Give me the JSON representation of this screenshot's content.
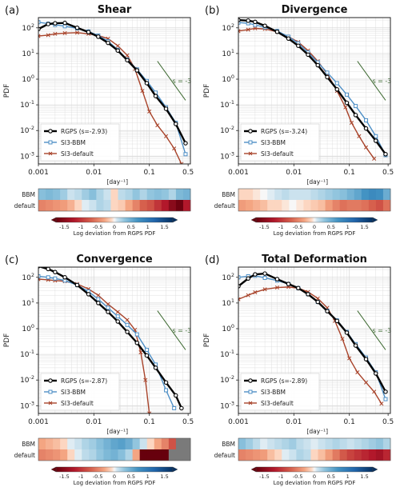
{
  "colors": {
    "rgps": "#000000",
    "bbm": "#4e8fc6",
    "default": "#a8432a",
    "slope_line": "#3e6a32",
    "missing": "#7a7a7a",
    "grid": "#d9d9d9"
  },
  "shared": {
    "ylabel": "PDF",
    "xlabel": "[day⁻¹]",
    "xticks": [
      {
        "value": 0.001,
        "label": "0.001"
      },
      {
        "value": 0.01,
        "label": "0.01"
      },
      {
        "value": 0.1,
        "label": "0.1"
      },
      {
        "value": 0.5,
        "label": "0.5"
      }
    ],
    "yticks": [
      {
        "exp": 2,
        "label": "10",
        "sup": "2"
      },
      {
        "exp": 1,
        "label": "10",
        "sup": "1"
      },
      {
        "exp": 0,
        "label": "10",
        "sup": "0"
      },
      {
        "exp": -1,
        "label": "10",
        "sup": "-1"
      },
      {
        "exp": -2,
        "label": "10",
        "sup": "-2"
      },
      {
        "exp": -3,
        "label": "10",
        "sup": "-3"
      }
    ],
    "slope_label": "s = -3",
    "heat_rows": [
      "BBM",
      "default"
    ],
    "colorbar_label": "Log deviation from RGPS PDF",
    "colorbar_ticks": [
      "-1.5",
      "-1",
      "-0.5",
      "0",
      "0.5",
      "1",
      "1.5"
    ],
    "colorbar_range": [
      -1.75,
      1.75
    ]
  },
  "chart_data": [
    {
      "type": "line",
      "panel": "(a)",
      "title": "Shear",
      "xscale": "log",
      "yscale": "log",
      "xlim": [
        0.001,
        0.55
      ],
      "ylim": [
        0.0005,
        250
      ],
      "grid": true,
      "legend_loc": "lower-left",
      "slope": {
        "exponent": -3,
        "x_range": [
          0.14,
          0.45
        ],
        "y_start": 5.0
      },
      "series": [
        {
          "name": "RGPS (s=-2.93)",
          "key": "rgps",
          "marker": "circle",
          "x": [
            0.001,
            0.0015,
            0.002,
            0.003,
            0.005,
            0.008,
            0.012,
            0.018,
            0.027,
            0.04,
            0.06,
            0.09,
            0.13,
            0.2,
            0.3,
            0.45
          ],
          "y": [
            90,
            140,
            150,
            155,
            100,
            68,
            45,
            26,
            13,
            5.5,
            2.2,
            0.7,
            0.22,
            0.07,
            0.018,
            0.0032
          ]
        },
        {
          "name": "SI3-BBM",
          "key": "bbm",
          "marker": "square",
          "x": [
            0.001,
            0.0015,
            0.002,
            0.003,
            0.005,
            0.008,
            0.012,
            0.018,
            0.027,
            0.04,
            0.06,
            0.09,
            0.13,
            0.2,
            0.3,
            0.45
          ],
          "y": [
            165,
            145,
            130,
            115,
            95,
            72,
            50,
            30,
            14,
            5.8,
            2.4,
            0.85,
            0.3,
            0.08,
            0.02,
            0.0012
          ]
        },
        {
          "name": "SI3-default",
          "key": "default",
          "marker": "x",
          "x": [
            0.001,
            0.0015,
            0.002,
            0.003,
            0.005,
            0.008,
            0.012,
            0.018,
            0.027,
            0.04,
            0.055,
            0.075,
            0.1,
            0.14,
            0.2,
            0.28,
            0.38
          ],
          "y": [
            48,
            52,
            58,
            62,
            65,
            58,
            50,
            38,
            20,
            8.5,
            2.5,
            0.35,
            0.055,
            0.016,
            0.006,
            0.002,
            0.0005
          ]
        }
      ],
      "heat": {
        "BBM": [
          0.35,
          0.4,
          0.35,
          0.25,
          0.1,
          0.15,
          0.25,
          0.35,
          0.2,
          0.1,
          -0.1,
          0.15,
          0.2,
          0.3,
          0.2,
          0.3,
          0.35,
          0.3,
          0.2,
          0.4,
          0.45
        ],
        "default": [
          -0.5,
          -0.45,
          -0.4,
          -0.35,
          -0.25,
          -0.1,
          0.05,
          0.1,
          0.2,
          0.15,
          -0.1,
          -0.15,
          -0.3,
          -0.5,
          -0.7,
          -0.8,
          -1.0,
          -1.2,
          -1.5,
          -1.7,
          -1.2
        ]
      }
    },
    {
      "type": "line",
      "panel": "(b)",
      "title": "Divergence",
      "xscale": "log",
      "yscale": "log",
      "xlim": [
        0.001,
        0.55
      ],
      "ylim": [
        0.0005,
        250
      ],
      "grid": true,
      "legend_loc": "lower-left",
      "slope": {
        "exponent": -3,
        "x_range": [
          0.14,
          0.45
        ],
        "y_start": 5.0
      },
      "series": [
        {
          "name": "RGPS (s=-3.24)",
          "key": "rgps",
          "marker": "circle",
          "x": [
            0.001,
            0.0015,
            0.002,
            0.003,
            0.005,
            0.008,
            0.012,
            0.018,
            0.027,
            0.04,
            0.06,
            0.09,
            0.13,
            0.2,
            0.3,
            0.45
          ],
          "y": [
            200,
            190,
            170,
            120,
            70,
            38,
            20,
            9,
            3.5,
            1.2,
            0.4,
            0.12,
            0.04,
            0.012,
            0.004,
            0.0012
          ]
        },
        {
          "name": "SI3-BBM",
          "key": "bbm",
          "marker": "square",
          "x": [
            0.001,
            0.0015,
            0.002,
            0.003,
            0.005,
            0.008,
            0.012,
            0.018,
            0.027,
            0.04,
            0.06,
            0.09,
            0.13,
            0.2,
            0.3,
            0.45
          ],
          "y": [
            160,
            150,
            130,
            105,
            75,
            45,
            25,
            11,
            4.5,
            1.8,
            0.7,
            0.25,
            0.09,
            0.025,
            0.006,
            0.0011
          ]
        },
        {
          "name": "SI3-default",
          "key": "default",
          "marker": "x",
          "x": [
            0.001,
            0.0015,
            0.002,
            0.003,
            0.005,
            0.008,
            0.012,
            0.018,
            0.027,
            0.04,
            0.06,
            0.085,
            0.11,
            0.15,
            0.2,
            0.28
          ],
          "y": [
            75,
            85,
            95,
            90,
            70,
            45,
            28,
            13,
            5,
            1.6,
            0.35,
            0.08,
            0.02,
            0.006,
            0.0022,
            0.0008
          ]
        }
      ],
      "heat": {
        "BBM": [
          -0.1,
          -0.1,
          -0.05,
          0.0,
          0.05,
          0.1,
          0.15,
          0.1,
          0.1,
          0.1,
          0.15,
          0.2,
          0.25,
          0.3,
          0.35,
          0.45,
          0.55,
          0.7,
          0.8,
          0.75,
          0.5
        ],
        "default": [
          -0.35,
          -0.3,
          -0.25,
          -0.2,
          -0.1,
          -0.1,
          -0.05,
          0.0,
          -0.05,
          -0.1,
          -0.15,
          -0.2,
          -0.35,
          -0.5,
          -0.6,
          -0.55,
          -0.55,
          -0.6,
          -0.7,
          -0.8,
          -0.6
        ]
      }
    },
    {
      "type": "line",
      "panel": "(c)",
      "title": "Convergence",
      "xscale": "log",
      "yscale": "log",
      "xlim": [
        0.001,
        0.55
      ],
      "ylim": [
        0.0005,
        250
      ],
      "grid": true,
      "legend_loc": "lower-left",
      "slope": {
        "exponent": -3,
        "x_range": [
          0.14,
          0.45
        ],
        "y_start": 5.0
      },
      "series": [
        {
          "name": "RGPS (s=-2.87)",
          "key": "rgps",
          "marker": "circle",
          "x": [
            0.001,
            0.0015,
            0.002,
            0.003,
            0.005,
            0.008,
            0.012,
            0.018,
            0.027,
            0.04,
            0.06,
            0.09,
            0.13,
            0.2,
            0.3,
            0.38
          ],
          "y": [
            270,
            210,
            160,
            100,
            50,
            22,
            10,
            4.5,
            1.9,
            0.75,
            0.28,
            0.09,
            0.03,
            0.008,
            0.0025,
            0.0008
          ]
        },
        {
          "name": "SI3-BBM",
          "key": "bbm",
          "marker": "square",
          "x": [
            0.001,
            0.0015,
            0.002,
            0.003,
            0.005,
            0.008,
            0.012,
            0.018,
            0.027,
            0.04,
            0.06,
            0.09,
            0.13,
            0.2,
            0.28
          ],
          "y": [
            110,
            100,
            90,
            75,
            50,
            28,
            14,
            6.5,
            3.0,
            1.4,
            0.6,
            0.15,
            0.04,
            0.004,
            0.0008
          ]
        },
        {
          "name": "SI3-default",
          "key": "default",
          "marker": "x",
          "x": [
            0.001,
            0.0015,
            0.002,
            0.003,
            0.005,
            0.008,
            0.012,
            0.018,
            0.027,
            0.04,
            0.055,
            0.07,
            0.085,
            0.1
          ],
          "y": [
            85,
            80,
            75,
            70,
            55,
            35,
            20,
            9,
            4.5,
            2.2,
            0.9,
            0.12,
            0.01,
            0.0005
          ]
        }
      ],
      "heat": {
        "BBM": [
          -0.3,
          -0.25,
          -0.2,
          -0.1,
          0.05,
          0.1,
          0.2,
          0.25,
          0.35,
          0.45,
          0.55,
          0.6,
          0.5,
          0.3,
          0.1,
          -0.1,
          -0.3,
          -0.5,
          -0.8,
          null,
          null
        ],
        "default": [
          -0.5,
          -0.45,
          -0.4,
          -0.3,
          -0.1,
          0.05,
          0.15,
          0.2,
          0.3,
          0.4,
          0.45,
          0.35,
          0.2,
          -0.3,
          -1.8,
          -1.8,
          -1.8,
          -1.8,
          null,
          null,
          null
        ]
      }
    },
    {
      "type": "line",
      "panel": "(d)",
      "title": "Total Deformation",
      "xscale": "log",
      "yscale": "log",
      "xlim": [
        0.001,
        0.55
      ],
      "ylim": [
        0.0005,
        250
      ],
      "grid": true,
      "legend_loc": "lower-left",
      "slope": {
        "exponent": -3,
        "x_range": [
          0.14,
          0.45
        ],
        "y_start": 5.0
      },
      "series": [
        {
          "name": "RGPS (s=-2.89)",
          "key": "rgps",
          "marker": "circle",
          "x": [
            0.001,
            0.0015,
            0.002,
            0.003,
            0.005,
            0.008,
            0.012,
            0.018,
            0.027,
            0.04,
            0.06,
            0.09,
            0.13,
            0.2,
            0.3,
            0.45
          ],
          "y": [
            45,
            90,
            130,
            140,
            85,
            55,
            38,
            22,
            11,
            4.8,
            2.0,
            0.7,
            0.22,
            0.065,
            0.018,
            0.0035
          ]
        },
        {
          "name": "SI3-BBM",
          "key": "bbm",
          "marker": "square",
          "x": [
            0.001,
            0.0015,
            0.002,
            0.003,
            0.005,
            0.008,
            0.012,
            0.018,
            0.027,
            0.04,
            0.06,
            0.09,
            0.13,
            0.2,
            0.3,
            0.45
          ],
          "y": [
            100,
            110,
            115,
            95,
            75,
            55,
            38,
            22,
            11,
            5.0,
            2.1,
            0.75,
            0.25,
            0.075,
            0.02,
            0.0018
          ]
        },
        {
          "name": "SI3-default",
          "key": "default",
          "marker": "x",
          "x": [
            0.001,
            0.0015,
            0.002,
            0.003,
            0.005,
            0.008,
            0.012,
            0.018,
            0.027,
            0.04,
            0.055,
            0.075,
            0.1,
            0.14,
            0.2,
            0.28,
            0.38
          ],
          "y": [
            14,
            20,
            26,
            34,
            40,
            42,
            38,
            27,
            15,
            6.5,
            2.0,
            0.4,
            0.07,
            0.02,
            0.008,
            0.0035,
            0.0012
          ]
        }
      ],
      "heat": {
        "BBM": [
          0.35,
          0.25,
          0.15,
          0.05,
          0.1,
          0.15,
          0.2,
          0.25,
          0.15,
          0.1,
          0.05,
          0.1,
          0.15,
          0.2,
          0.15,
          0.1,
          0.15,
          0.2,
          0.25,
          0.3,
          0.2
        ],
        "default": [
          -0.5,
          -0.45,
          -0.4,
          -0.35,
          -0.2,
          -0.1,
          0.05,
          0.1,
          0.2,
          0.15,
          -0.1,
          -0.2,
          -0.35,
          -0.55,
          -0.75,
          -0.9,
          -1.0,
          -1.1,
          -1.2,
          -1.3,
          -1.1
        ]
      }
    }
  ]
}
